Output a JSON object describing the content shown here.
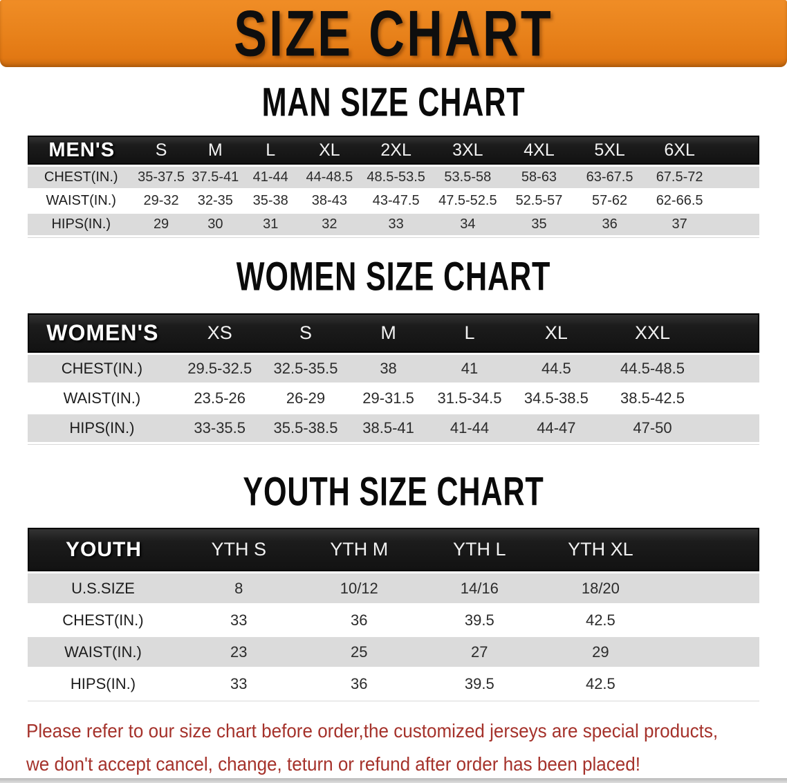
{
  "banner": {
    "title": "SIZE CHART",
    "background_color": "#E8821B",
    "text_color": "#0E0E0E"
  },
  "sections": [
    {
      "title": "MAN SIZE CHART",
      "table": {
        "header_label": "MEN'S",
        "columns": [
          "S",
          "M",
          "L",
          "XL",
          "2XL",
          "3XL",
          "4XL",
          "5XL",
          "6XL"
        ],
        "rows": [
          {
            "label": "CHEST(IN.)",
            "values": [
              "35-37.5",
              "37.5-41",
              "41-44",
              "44-48.5",
              "48.5-53.5",
              "53.5-58",
              "58-63",
              "63-67.5",
              "67.5-72"
            ]
          },
          {
            "label": "WAIST(IN.)",
            "values": [
              "29-32",
              "32-35",
              "35-38",
              "38-43",
              "43-47.5",
              "47.5-52.5",
              "52.5-57",
              "57-62",
              "62-66.5"
            ]
          },
          {
            "label": "HIPS(IN.)",
            "values": [
              "29",
              "30",
              "31",
              "32",
              "33",
              "34",
              "35",
              "36",
              "37"
            ]
          }
        ]
      }
    },
    {
      "title": "WOMEN SIZE CHART",
      "table": {
        "header_label": "WOMEN'S",
        "columns": [
          "XS",
          "S",
          "M",
          "L",
          "XL",
          "XXL"
        ],
        "rows": [
          {
            "label": "CHEST(IN.)",
            "values": [
              "29.5-32.5",
              "32.5-35.5",
              "38",
              "41",
              "44.5",
              "44.5-48.5"
            ]
          },
          {
            "label": "WAIST(IN.)",
            "values": [
              "23.5-26",
              "26-29",
              "29-31.5",
              "31.5-34.5",
              "34.5-38.5",
              "38.5-42.5"
            ]
          },
          {
            "label": "HIPS(IN.)",
            "values": [
              "33-35.5",
              "35.5-38.5",
              "38.5-41",
              "41-44",
              "44-47",
              "47-50"
            ]
          }
        ]
      }
    },
    {
      "title": "YOUTH SIZE CHART",
      "table": {
        "header_label": "YOUTH",
        "columns": [
          "YTH S",
          "YTH M",
          "YTH L",
          "YTH XL"
        ],
        "rows": [
          {
            "label": "U.S.SIZE",
            "values": [
              "8",
              "10/12",
              "14/16",
              "18/20"
            ]
          },
          {
            "label": "CHEST(IN.)",
            "values": [
              "33",
              "36",
              "39.5",
              "42.5"
            ]
          },
          {
            "label": "WAIST(IN.)",
            "values": [
              "23",
              "25",
              "27",
              "29"
            ]
          },
          {
            "label": "HIPS(IN.)",
            "values": [
              "33",
              "36",
              "39.5",
              "42.5"
            ]
          }
        ]
      }
    }
  ],
  "table_colors": {
    "header_bar": "#1A1A1A",
    "header_text": "#FFFFFF",
    "row_alt": "#DBDBDB",
    "row_base": "#FFFFFF",
    "cell_text": "#2B2B2B"
  },
  "disclaimer": {
    "color": "#A5322B",
    "line1": "Please refer to our size chart before order,the customized jerseys are special products,",
    "line2": "we don't accept cancel, change, teturn or refund after order has been placed!"
  }
}
